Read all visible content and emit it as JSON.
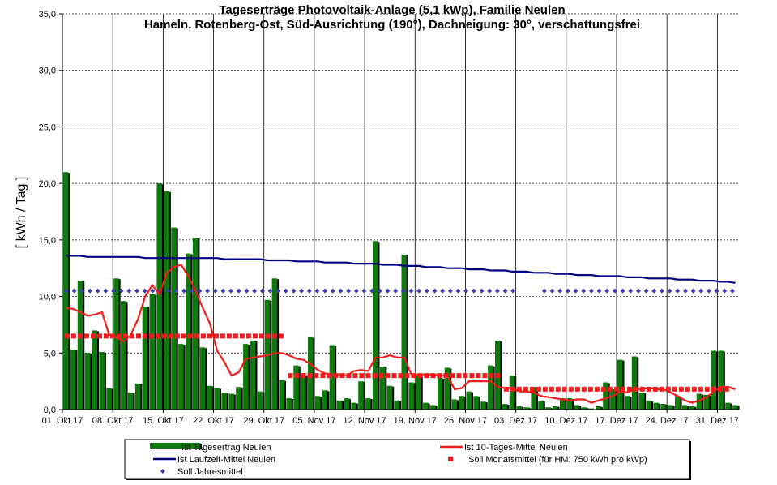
{
  "chart_data": {
    "type": "bar",
    "title": "Tageserträge Photovoltaik-Anlage (5,1 kWp),  Familie Neulen",
    "subtitle": "Hameln, Rotenberg-Ost, Süd-Ausrichtung (190°), Dachneigung: 30°, verschattungsfrei",
    "ylabel": "[ kWh / Tag ]",
    "xlabel": "",
    "ylim": [
      0,
      35
    ],
    "yticks": [
      "0,0",
      "5,0",
      "10,0",
      "15,0",
      "20,0",
      "25,0",
      "30,0",
      "35,0"
    ],
    "xticks": [
      "01. Okt 17",
      "08. Okt 17",
      "15. Okt 17",
      "22. Okt 17",
      "29. Okt 17",
      "05. Nov 17",
      "12. Nov 17",
      "19. Nov 17",
      "26. Nov 17",
      "03. Dez 17",
      "10. Dez 17",
      "17. Dez 17",
      "24. Dez 17",
      "31. Dez 17"
    ],
    "grid": true,
    "legend_position": "bottom",
    "colors": {
      "bar": "#0e7a0e",
      "bar_shadow": "#000000",
      "ten_day": "#ee1c1c",
      "running_mean": "#000080",
      "monthly_target": "#ee1c1c",
      "annual_target": "#3c3ca8"
    },
    "series": [
      {
        "name": "Ist Tagesertrag Neulen",
        "type": "bar",
        "values": [
          21.0,
          5.3,
          11.4,
          5.0,
          7.0,
          5.1,
          1.9,
          11.6,
          9.6,
          1.5,
          2.3,
          9.1,
          10.2,
          20.0,
          19.3,
          16.1,
          5.8,
          13.8,
          15.2,
          5.5,
          2.1,
          1.9,
          1.5,
          1.4,
          2.0,
          5.8,
          6.1,
          1.6,
          9.7,
          11.6,
          2.6,
          1.0,
          3.9,
          3.1,
          6.4,
          1.2,
          1.7,
          5.7,
          0.8,
          1.0,
          0.6,
          2.5,
          1.0,
          14.9,
          3.8,
          2.1,
          0.8,
          13.7,
          2.4,
          3.0,
          0.6,
          0.4,
          2.8,
          3.7,
          0.9,
          1.2,
          1.6,
          1.2,
          0.7,
          3.9,
          6.1,
          0.5,
          3.0,
          0.3,
          0.2,
          2.0,
          0.8,
          0.2,
          0.3,
          1.0,
          1.0,
          0.4,
          0.2,
          0.1,
          0.3,
          2.4,
          1.8,
          4.4,
          1.2,
          4.7,
          1.5,
          0.8,
          0.6,
          0.5,
          0.4,
          1.2,
          0.4,
          0.3,
          1.4,
          1.3,
          5.2,
          5.2,
          0.6,
          0.4
        ]
      },
      {
        "name": "Ist 10-Tages-Mittel Neulen",
        "type": "line",
        "values": [
          9.0,
          8.9,
          8.6,
          8.3,
          8.4,
          8.6,
          6.6,
          6.4,
          6.0,
          6.6,
          8.0,
          10.0,
          11.0,
          10.2,
          12.1,
          12.6,
          12.8,
          11.8,
          10.5,
          9.0,
          7.6,
          5.2,
          4.2,
          3.0,
          3.3,
          4.5,
          4.6,
          4.7,
          4.8,
          5.0,
          5.0,
          4.8,
          4.5,
          4.4,
          4.0,
          3.5,
          3.2,
          3.1,
          3.1,
          3.0,
          3.4,
          3.5,
          3.4,
          4.6,
          4.6,
          4.8,
          4.6,
          4.6,
          3.1,
          3.1,
          3.1,
          3.1,
          3.0,
          3.0,
          1.8,
          1.9,
          2.5,
          2.5,
          2.5,
          2.5,
          2.0,
          1.9,
          1.9,
          1.6,
          1.6,
          1.5,
          1.2,
          1.1,
          1.0,
          0.9,
          0.8,
          0.9,
          0.9,
          0.6,
          0.8,
          1.0,
          1.2,
          1.6,
          1.5,
          1.8,
          1.8,
          1.9,
          1.8,
          1.8,
          1.5,
          1.2,
          0.8,
          0.6,
          0.8,
          1.1,
          1.6,
          2.0,
          2.0,
          1.8
        ]
      },
      {
        "name": "Ist Laufzeit-Mittel Neulen",
        "type": "line",
        "values": [
          13.6,
          13.6,
          13.6,
          13.5,
          13.5,
          13.5,
          13.5,
          13.5,
          13.5,
          13.5,
          13.5,
          13.4,
          13.4,
          13.4,
          13.4,
          13.4,
          13.4,
          13.4,
          13.4,
          13.4,
          13.4,
          13.4,
          13.3,
          13.3,
          13.3,
          13.3,
          13.3,
          13.3,
          13.2,
          13.2,
          13.2,
          13.2,
          13.1,
          13.1,
          13.1,
          13.1,
          13.0,
          13.0,
          13.0,
          13.0,
          12.9,
          12.9,
          12.9,
          12.9,
          12.8,
          12.8,
          12.8,
          12.7,
          12.7,
          12.7,
          12.6,
          12.6,
          12.6,
          12.5,
          12.5,
          12.5,
          12.4,
          12.4,
          12.4,
          12.3,
          12.3,
          12.3,
          12.2,
          12.2,
          12.2,
          12.1,
          12.1,
          12.1,
          12.0,
          12.0,
          12.0,
          11.9,
          11.9,
          11.9,
          11.8,
          11.8,
          11.8,
          11.8,
          11.7,
          11.7,
          11.7,
          11.6,
          11.6,
          11.6,
          11.6,
          11.5,
          11.5,
          11.5,
          11.4,
          11.4,
          11.4,
          11.3,
          11.3,
          11.2
        ]
      },
      {
        "name": "Soll Monatsmittel (für HM: 750 kWh pro kWp)",
        "type": "segments",
        "segments": [
          {
            "from_day": 0,
            "to_day": 30,
            "value": 6.5
          },
          {
            "from_day": 31,
            "to_day": 60,
            "value": 3.0
          },
          {
            "from_day": 61,
            "to_day": 92,
            "value": 1.8
          }
        ]
      },
      {
        "name": "Soll Jahresmittel",
        "type": "points",
        "value": 10.5
      }
    ]
  },
  "legend": [
    {
      "key": "bar",
      "label": "Ist Tagesertrag Neulen"
    },
    {
      "key": "ten_day",
      "label": "Ist 10-Tages-Mittel Neulen"
    },
    {
      "key": "running_mean",
      "label": "Ist Laufzeit-Mittel Neulen"
    },
    {
      "key": "monthly_target",
      "label": "Soll Monatsmittel (für HM: 750 kWh pro kWp)"
    },
    {
      "key": "annual_target",
      "label": "Soll Jahresmittel"
    }
  ]
}
